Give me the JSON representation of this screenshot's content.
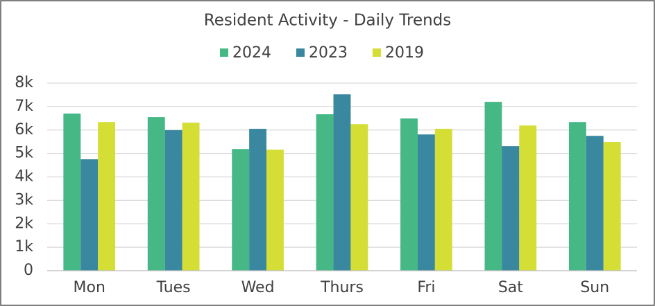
{
  "chart_data": {
    "type": "bar",
    "title": "Resident Activity - Daily Trends",
    "categories": [
      "Mon",
      "Tues",
      "Wed",
      "Thurs",
      "Fri",
      "Sat",
      "Sun"
    ],
    "series": [
      {
        "name": "2024",
        "color": "#45b886",
        "values": [
          6700,
          6550,
          5190,
          6670,
          6490,
          7200,
          6340
        ]
      },
      {
        "name": "2023",
        "color": "#3a87a0",
        "values": [
          4750,
          5990,
          6050,
          7520,
          5810,
          5310,
          5750
        ]
      },
      {
        "name": "2019",
        "color": "#d4de34",
        "values": [
          6340,
          6310,
          5160,
          6250,
          6050,
          6190,
          5490
        ]
      }
    ],
    "ylim": [
      0,
      8000
    ],
    "yticks": [
      0,
      {
        "value": 1000,
        "label": "1k"
      },
      {
        "value": 2000,
        "label": "2k"
      },
      {
        "value": 3000,
        "label": "3k"
      },
      {
        "value": 4000,
        "label": "4k"
      },
      {
        "value": 5000,
        "label": "5k"
      },
      {
        "value": 6000,
        "label": "6k"
      },
      {
        "value": 7000,
        "label": "7k"
      },
      {
        "value": 8000,
        "label": "8k"
      }
    ],
    "grid": true,
    "legend": "top"
  }
}
